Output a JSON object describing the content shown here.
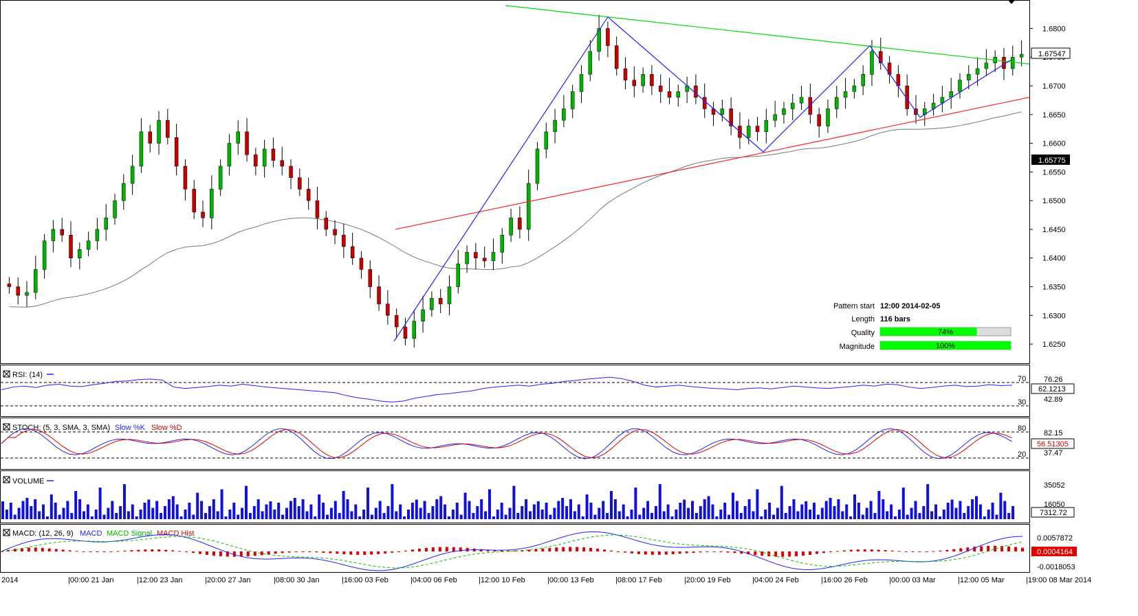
{
  "chart_data": {
    "type": "candlestick",
    "instrument_price_axis": {
      "ylim": [
        1.6225,
        1.684
      ],
      "ticks": [
        "1.6800",
        "1.6750",
        "1.6700",
        "1.6650",
        "1.6600",
        "1.6550",
        "1.6500",
        "1.6450",
        "1.6400",
        "1.6350",
        "1.6300",
        "1.6250"
      ],
      "last_price": "1.67547",
      "ma_value": "1.65775"
    },
    "x_labels": [
      "2014",
      "|00:00 21 Jan",
      "|12:00 23 Jan",
      "|20:00 27 Jan",
      "|08:00 30 Jan",
      "|16:00 03 Feb",
      "|04:00 06 Feb",
      "|12:00 10 Feb",
      "|00:00 13 Feb",
      "|08:00 17 Feb",
      "|20:00 19 Feb",
      "|04:00 24 Feb",
      "|16:00 26 Feb",
      "|00:00 03 Mar",
      "|12:00 05 Mar",
      "|19:00 08 Mar 2014"
    ],
    "pattern": {
      "start_label": "Pattern start",
      "start_value": "12:00 2014-02-05",
      "length_label": "Length",
      "length_value": "116 bars",
      "quality_label": "Quality",
      "quality_pct": 74,
      "quality_text": "74%",
      "magnitude_label": "Magnitude",
      "magnitude_pct": 100,
      "magnitude_text": "100%"
    },
    "zigzag_prices": [
      1.6255,
      1.682,
      1.6585,
      1.677,
      1.6645,
      1.6745
    ],
    "closes": [
      1.635,
      1.6335,
      1.634,
      1.638,
      1.643,
      1.645,
      1.644,
      1.64,
      1.6415,
      1.643,
      1.645,
      1.647,
      1.65,
      1.653,
      1.656,
      1.662,
      1.66,
      1.664,
      1.661,
      1.656,
      1.652,
      1.648,
      1.647,
      1.652,
      1.656,
      1.66,
      1.662,
      1.658,
      1.656,
      1.659,
      1.657,
      1.656,
      1.654,
      1.652,
      1.65,
      1.647,
      1.645,
      1.644,
      1.642,
      1.64,
      1.638,
      1.635,
      1.632,
      1.63,
      1.628,
      1.626,
      1.629,
      1.631,
      1.633,
      1.632,
      1.635,
      1.639,
      1.641,
      1.64,
      1.6395,
      1.641,
      1.644,
      1.647,
      1.645,
      1.653,
      1.659,
      1.662,
      1.664,
      1.666,
      1.669,
      1.672,
      1.676,
      1.68,
      1.677,
      1.673,
      1.671,
      1.67,
      1.672,
      1.67,
      1.669,
      1.668,
      1.669,
      1.67,
      1.668,
      1.666,
      1.665,
      1.666,
      1.663,
      1.661,
      1.663,
      1.662,
      1.664,
      1.665,
      1.666,
      1.667,
      1.668,
      1.665,
      1.663,
      1.666,
      1.668,
      1.669,
      1.67,
      1.672,
      1.676,
      1.674,
      1.672,
      1.67,
      1.666,
      1.665,
      1.666,
      1.667,
      1.668,
      1.669,
      1.671,
      1.672,
      1.673,
      1.674,
      1.675,
      1.673,
      1.675,
      1.6755
    ],
    "rsi": {
      "label": "RSI: (14)",
      "levels": [
        "70",
        "30"
      ],
      "right_values": [
        "76.26",
        "42.89"
      ],
      "current": "62.1213",
      "values": [
        52,
        58,
        60,
        57,
        62,
        64,
        60,
        59,
        63,
        66,
        70,
        71,
        74,
        75,
        73,
        58,
        55,
        57,
        59,
        62,
        60,
        64,
        61,
        58,
        56,
        54,
        52,
        50,
        48,
        46,
        40,
        35,
        32,
        28,
        26,
        28,
        34,
        38,
        42,
        44,
        47,
        50,
        55,
        58,
        60,
        62,
        60,
        64,
        66,
        70,
        72,
        75,
        77,
        79,
        76,
        70,
        62,
        58,
        60,
        62,
        59,
        57,
        55,
        54,
        52,
        55,
        56,
        54,
        57,
        60,
        58,
        56,
        55,
        57,
        59,
        62,
        60,
        64,
        63,
        58,
        55,
        57,
        60,
        62,
        59,
        60,
        63,
        61,
        62
      ]
    },
    "stoch": {
      "label": "STOCH: (5, 3, SMA, 3, SMA)",
      "series_k": "Slow %K",
      "series_d": "Slow %D",
      "levels": [
        "80",
        "20"
      ],
      "right_values": [
        "82.15",
        "37.47"
      ],
      "current": "56.51305"
    },
    "volume": {
      "label": "VOLUME",
      "right_values": [
        "35052",
        "16050"
      ],
      "current": "7312.72"
    },
    "macd": {
      "label": "MACD: (12, 26, 9)",
      "series_macd": "MACD",
      "series_signal": "MACD Signal",
      "series_hist": "MACD Hist",
      "right_values": [
        "0.0057872"
      ],
      "current": "0.0004164",
      "bottom_value": "-0.0018053"
    },
    "colors": {
      "up_candle": "#00b400",
      "down_candle": "#c80000",
      "zigzag": "#2020ff",
      "resistance": "#00dd00",
      "support": "#ff2020",
      "ma": "#777777",
      "progress": "#00ff00"
    }
  }
}
